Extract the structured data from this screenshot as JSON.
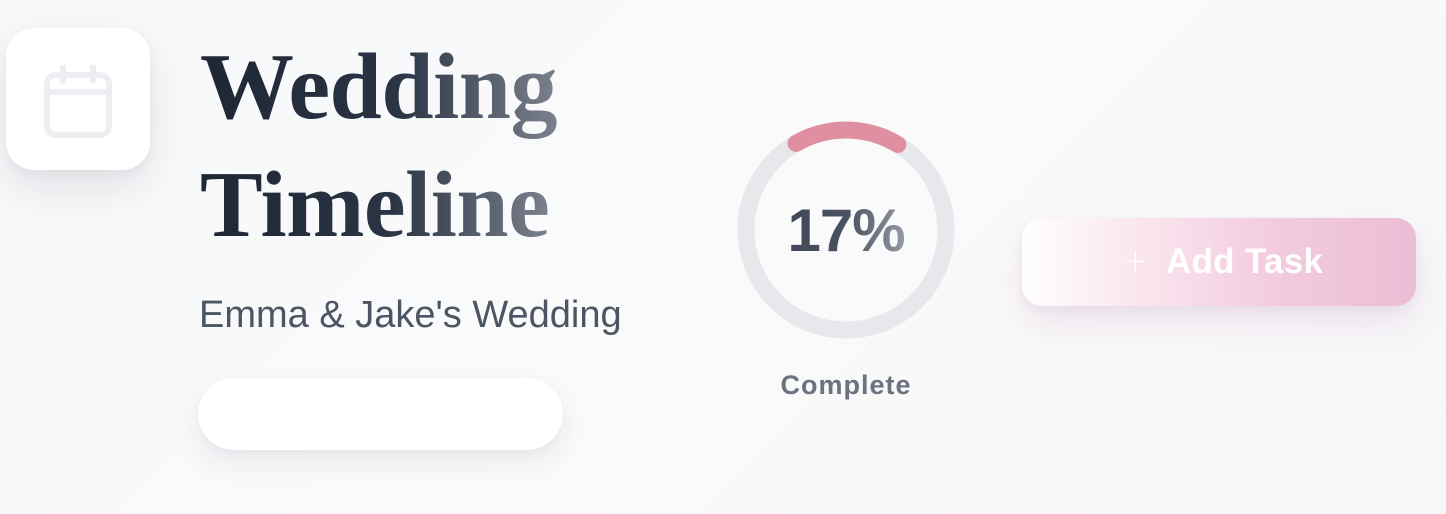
{
  "header": {
    "icon": "calendar-icon",
    "title_line_1": "Wedding",
    "title_line_2": "Timeline",
    "subtitle": "Emma & Jake's Wedding"
  },
  "progress": {
    "value": 17,
    "label": "17%",
    "caption": "Complete"
  },
  "actions": {
    "add_task_icon": "plus-icon",
    "add_task_label": "Add Task"
  },
  "colors": {
    "title": "#1f2937",
    "subtitle": "#4b5563",
    "ring_track": "#e5e7eb",
    "ring_progress": "#e08fa3",
    "accent_pink": "#ecbdd5"
  }
}
